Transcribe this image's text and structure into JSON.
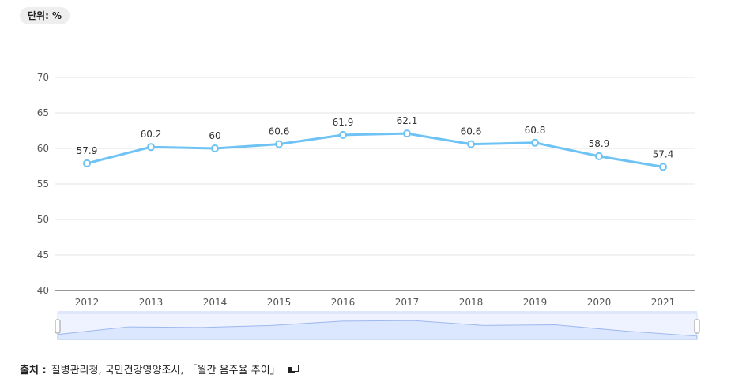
{
  "unit_label": "단위: %",
  "source": {
    "label": "출처 :",
    "text": "질병관리청, 국민건강영양조사, 「월간 음주율 추이」",
    "link_icon": "external-link-icon"
  },
  "colors": {
    "series": "#6ec3f4",
    "navigator_fill": "#dbe6ff",
    "navigator_line": "#9fb8f0"
  },
  "chart_data": {
    "type": "line",
    "categories": [
      "2012",
      "2013",
      "2014",
      "2015",
      "2016",
      "2017",
      "2018",
      "2019",
      "2020",
      "2021"
    ],
    "series": [
      {
        "values": [
          57.9,
          60.2,
          60,
          60.6,
          61.9,
          62.1,
          60.6,
          60.8,
          58.9,
          57.4
        ]
      }
    ],
    "y_ticks": [
      40,
      45,
      50,
      55,
      60,
      65,
      70
    ],
    "ylim": [
      40,
      70
    ],
    "grid": true,
    "data_labels": true,
    "navigator": true
  }
}
